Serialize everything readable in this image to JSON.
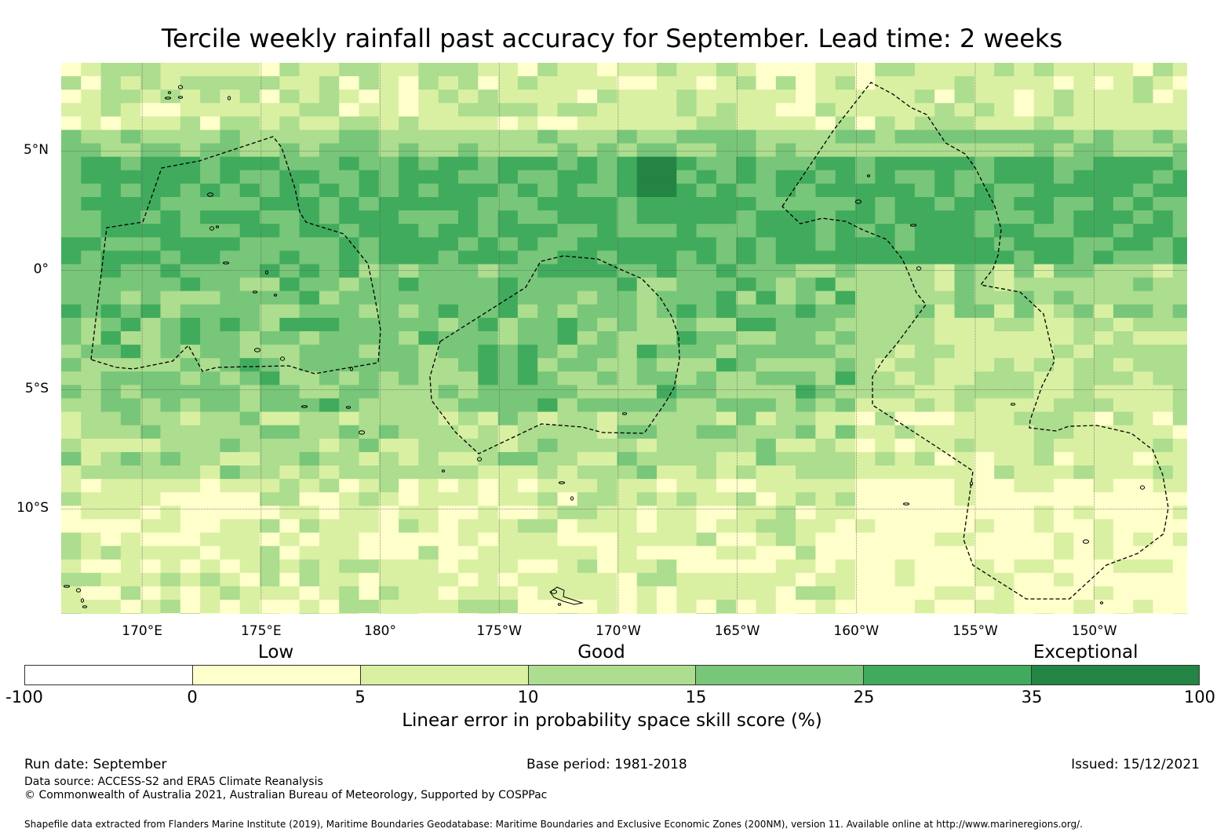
{
  "title": "Tercile weekly rainfall past accuracy for September. Lead time: 2 weeks",
  "map": {
    "lon_range": [
      166.6,
      213.9
    ],
    "lat_range": [
      -14.4,
      8.7
    ],
    "lat_ticks": [
      {
        "value": 5,
        "label": "5°N"
      },
      {
        "value": 0,
        "label": "0°"
      },
      {
        "value": -5,
        "label": "5°S"
      },
      {
        "value": -10,
        "label": "10°S"
      }
    ],
    "lon_ticks": [
      {
        "value": 170,
        "label": "170°E"
      },
      {
        "value": 175,
        "label": "175°E"
      },
      {
        "value": 180,
        "label": "180°"
      },
      {
        "value": 185,
        "label": "175°W"
      },
      {
        "value": 190,
        "label": "170°W"
      },
      {
        "value": 195,
        "label": "165°W"
      },
      {
        "value": 200,
        "label": "160°W"
      },
      {
        "value": 205,
        "label": "155°W"
      },
      {
        "value": 210,
        "label": "150°W"
      }
    ]
  },
  "colorbar": {
    "categories": [
      {
        "label": "Low",
        "at": 0.214
      },
      {
        "label": "Good",
        "at": 0.491
      },
      {
        "label": "Exceptional",
        "at": 0.903
      }
    ],
    "ticks": [
      "-100",
      "0",
      "5",
      "10",
      "15",
      "25",
      "35",
      "100"
    ],
    "colors": [
      "#ffffff",
      "#ffffcc",
      "#d9f0a3",
      "#addd8e",
      "#78c679",
      "#41ab5d",
      "#238443"
    ],
    "label": "Linear error in probability space skill score (%)"
  },
  "footer": {
    "run_date": "Run date: September",
    "base_period": "Base period: 1981-2018",
    "issued": "Issued: 15/12/2021",
    "data_source": "Data source: ACCESS-S2 and ERA5 Climate Reanalysis",
    "copyright": "© Commonwealth of Australia 2021, Australian Bureau of Meteorology, Supported by COSPPac",
    "shapefile": "Shapefile data extracted from Flanders Marine Institute (2019), Maritime Boundaries Geodatabase: Maritime Boundaries and Exclusive Economic Zones (200NM), version 11. Available online at http://www.marineregions.org/."
  }
}
